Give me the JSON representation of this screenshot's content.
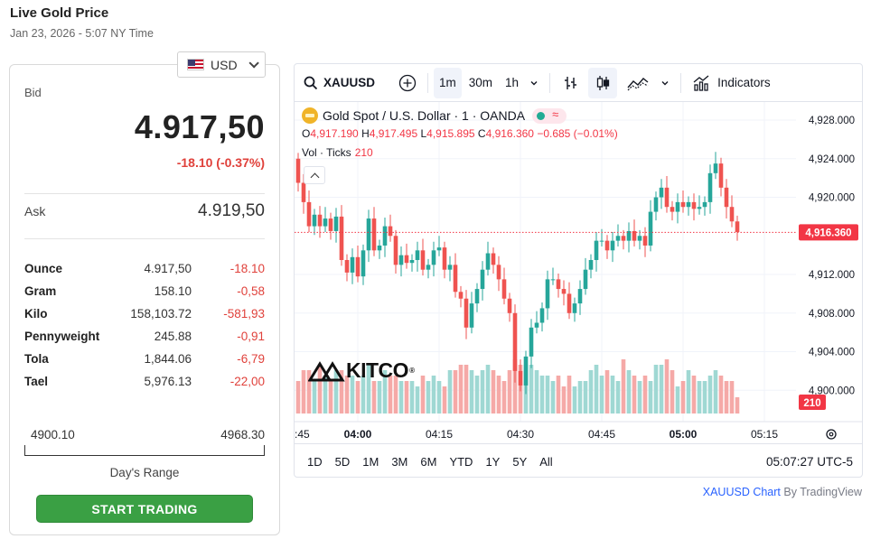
{
  "header": {
    "title": "Live Gold Price",
    "timestamp": "Jan 23, 2026 - 5:07 NY Time"
  },
  "panel": {
    "currency": "USD",
    "bid_label": "Bid",
    "bid_value": "4.917,50",
    "bid_change": "-18.10 (-0.37%)",
    "ask_label": "Ask",
    "ask_value": "4.919,50",
    "weights": [
      {
        "name": "Ounce",
        "price": "4.917,50",
        "change": "-18.10"
      },
      {
        "name": "Gram",
        "price": "158.10",
        "change": "-0,58"
      },
      {
        "name": "Kilo",
        "price": "158,103.72",
        "change": "-581,93"
      },
      {
        "name": "Pennyweight",
        "price": "245.88",
        "change": "-0,91"
      },
      {
        "name": "Tola",
        "price": "1,844.06",
        "change": "-6,79"
      },
      {
        "name": "Tael",
        "price": "5,976.13",
        "change": "-22,00"
      }
    ],
    "range_low": "4900.10",
    "range_high": "4968.30",
    "range_label": "Day's Range",
    "trade_button": "START TRADING"
  },
  "chart": {
    "symbol": "XAUUSD",
    "intervals": [
      "1m",
      "30m",
      "1h"
    ],
    "active_interval": "1m",
    "indicators_label": "Indicators",
    "instrument": "Gold Spot / U.S. Dollar · 1 · OANDA",
    "ohlc": {
      "o_label": "O",
      "o": "4,917.190",
      "h_label": "H",
      "h": "4,917.495",
      "l_label": "L",
      "l": "4,915.895",
      "c_label": "C",
      "c": "4,916.360",
      "change": "−0.685 (−0.01%)"
    },
    "volume_label": "Vol · Ticks",
    "volume_value": "210",
    "watermark": "KITCO",
    "ranges": [
      "1D",
      "5D",
      "1M",
      "3M",
      "6M",
      "YTD",
      "1Y",
      "5Y",
      "All"
    ],
    "clock": "05:07:27 UTC-5",
    "colors": {
      "up": "#26a69a",
      "down": "#ef5350",
      "vol_up": "#9fd8d3",
      "vol_down": "#f5a9a7"
    }
  },
  "chart_data": {
    "type": "candlestick",
    "y_ticks": [
      "4,928.000",
      "4,924.000",
      "4,920.000",
      "4,916.360",
      "4,912.000",
      "4,908.000",
      "4,904.000",
      "4,900.000"
    ],
    "y_range": [
      4897.5,
      4929.5
    ],
    "last_price": 4916.36,
    "last_price_label": "4,916.360",
    "last_volume_label": "210",
    "x_ticks": [
      {
        "label": ":45",
        "index": -4
      },
      {
        "label": "04:00",
        "index": 11
      },
      {
        "label": "04:15",
        "index": 26
      },
      {
        "label": "04:30",
        "index": 41
      },
      {
        "label": "04:45",
        "index": 56
      },
      {
        "label": "05:00",
        "index": 71
      },
      {
        "label": "05:15",
        "index": 86
      }
    ],
    "close": [
      4921.5,
      4919.5,
      4917.0,
      4918.2,
      4917.0,
      4917.8,
      4916.5,
      4918.0,
      4913.5,
      4912.2,
      4913.8,
      4911.8,
      4914.5,
      4917.8,
      4914.5,
      4915.0,
      4917.0,
      4916.0,
      4913.0,
      4914.0,
      4913.2,
      4913.5,
      4914.5,
      4912.5,
      4913.0,
      4914.5,
      4914.8,
      4912.5,
      4913.0,
      4910.2,
      4909.5,
      4906.5,
      4909.0,
      4910.5,
      4912.5,
      4914.2,
      4913.0,
      4911.5,
      4909.5,
      4908.0,
      4902.0,
      4900.5,
      4903.5,
      4906.5,
      4907.0,
      4908.5,
      4911.5,
      4911.5,
      4910.5,
      4910.0,
      4908.0,
      4909.0,
      4910.5,
      4912.5,
      4913.5,
      4915.5,
      4915.5,
      4914.5,
      4915.5,
      4916.0,
      4915.5,
      4916.5,
      4915.5,
      4916.0,
      4915.0,
      4918.5,
      4920.0,
      4921.0,
      4919.0,
      4918.5,
      4919.5,
      4919.0,
      4919.5,
      4918.8,
      4919.0,
      4919.5,
      4922.5,
      4923.5,
      4921.0,
      4919.0,
      4917.5,
      4916.4
    ],
    "volume": [
      6,
      8,
      8,
      6,
      9,
      7,
      6,
      8,
      8,
      7,
      7,
      6,
      7,
      9,
      6,
      6,
      8,
      7,
      7,
      6,
      6,
      6,
      5,
      7,
      6,
      7,
      6,
      5,
      8,
      8,
      9,
      9,
      8,
      7,
      8,
      9,
      8,
      7,
      6,
      8,
      10,
      9,
      9,
      9,
      8,
      7,
      7,
      6,
      7,
      5,
      7,
      5,
      6,
      6,
      8,
      9,
      7,
      8,
      7,
      6,
      10,
      8,
      7,
      6,
      7,
      6,
      9,
      9,
      10,
      8,
      5,
      6,
      8,
      7,
      6,
      6,
      7,
      8,
      7,
      6,
      6,
      3
    ]
  },
  "attribution": {
    "link": "XAUUSD Chart",
    "by": "By TradingView"
  }
}
